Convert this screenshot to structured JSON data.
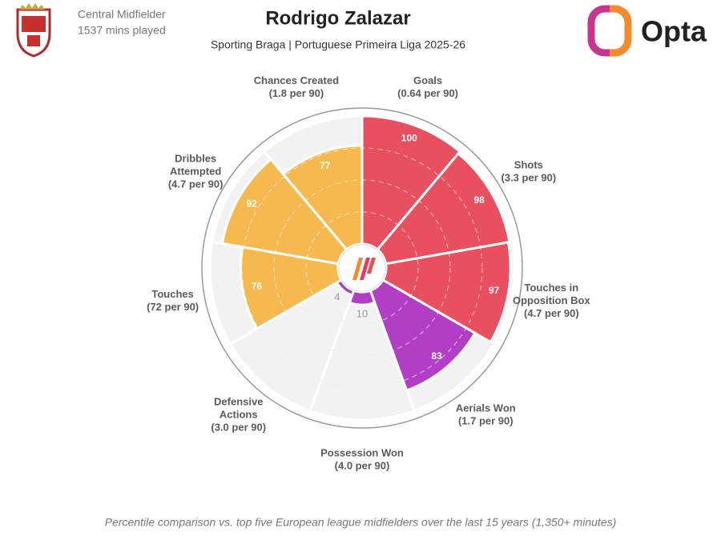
{
  "chart_data": {
    "type": "pizza",
    "title": "Rodrigo Zalazar",
    "subtitle": "Sporting Braga | Portuguese Primeira Liga 2025-26",
    "position": "Central Midfielder",
    "minutes": "1537 mins played",
    "brand": "Opta",
    "footnote": "Percentile comparison vs. top five European league midfielders over the last 15 years (1,350+ minutes)",
    "categories": [
      [
        "Goals"
      ],
      [
        "Shots"
      ],
      [
        "Touches in",
        "Opposition Box"
      ],
      [
        "Aerials Won"
      ],
      [
        "Possession Won"
      ],
      [
        "Defensive",
        "Actions"
      ],
      [
        "Touches"
      ],
      [
        "Dribbles",
        "Attempted"
      ],
      [
        "Chances Created"
      ]
    ],
    "per90": [
      "(0.64 per 90)",
      "(3.3 per 90)",
      "(4.7 per 90)",
      "(1.7 per 90)",
      "(4.0 per 90)",
      "(3.0 per 90)",
      "(72 per 90)",
      "(4.7 per 90)",
      "(1.8 per 90)"
    ],
    "values": [
      100,
      98,
      97,
      83,
      10,
      4,
      76,
      92,
      77
    ],
    "colors": [
      "#e8505f",
      "#e8505f",
      "#e8505f",
      "#b23ec6",
      "#b23ec6",
      "#b23ec6",
      "#f6b94f",
      "#f6b94f",
      "#f6b94f"
    ],
    "rlim": [
      0,
      100
    ],
    "rticks": [
      25,
      50,
      75
    ]
  }
}
